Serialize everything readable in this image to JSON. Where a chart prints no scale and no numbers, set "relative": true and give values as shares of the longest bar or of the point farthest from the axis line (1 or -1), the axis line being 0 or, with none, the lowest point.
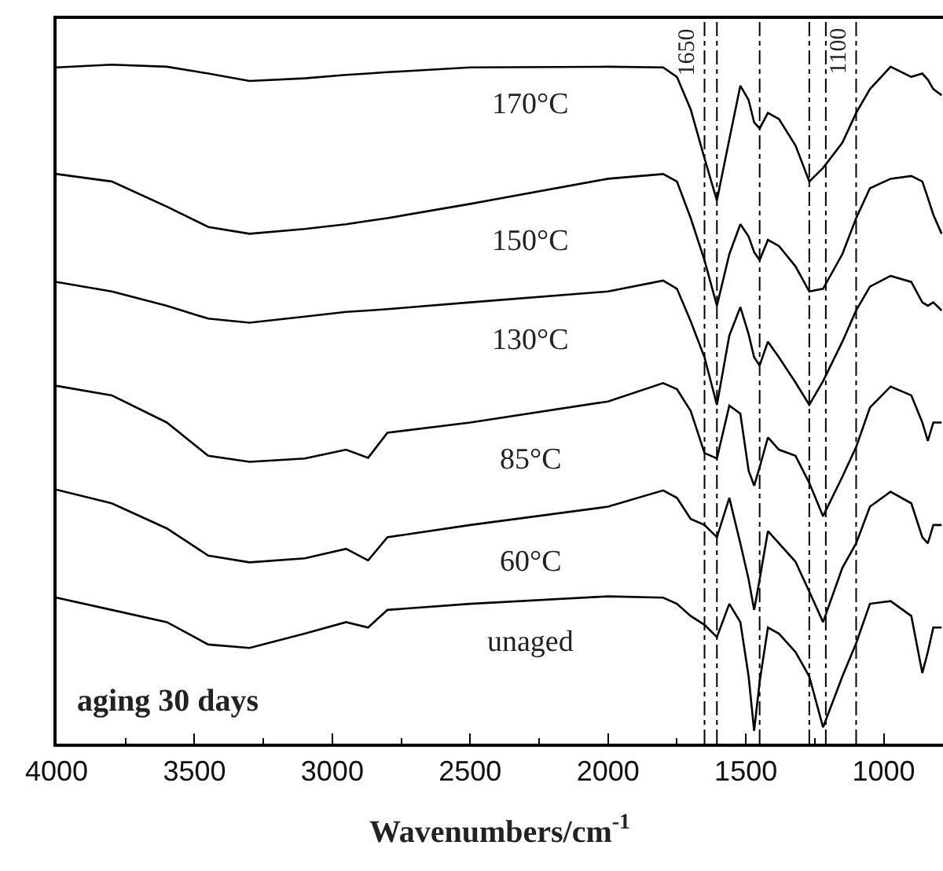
{
  "chart_data": {
    "type": "line",
    "relative": true,
    "xlabel": "Wavenumbers/cm$^{-1}$",
    "x": [
      4000,
      3800,
      3600,
      3450,
      3300,
      3100,
      2950,
      2870,
      2800,
      2500,
      2000,
      1800,
      1750,
      1700,
      1650,
      1605,
      1560,
      1520,
      1490,
      1470,
      1450,
      1420,
      1380,
      1320,
      1270,
      1220,
      1150,
      1100,
      1050,
      975,
      900,
      860,
      840,
      820,
      790
    ],
    "xlim": [
      4000,
      785
    ],
    "xticks": [
      4000,
      3500,
      3000,
      2500,
      2000,
      1500,
      1000
    ],
    "series": [
      {
        "name": "170°C",
        "color": "#000000",
        "values": [
          0.996,
          1.0,
          0.997,
          0.987,
          0.976,
          0.98,
          0.985,
          0.987,
          0.989,
          0.996,
          0.997,
          0.996,
          0.982,
          0.934,
          0.862,
          0.8,
          0.89,
          0.969,
          0.948,
          0.915,
          0.906,
          0.929,
          0.92,
          0.881,
          0.828,
          0.848,
          0.885,
          0.929,
          0.964,
          0.997,
          0.982,
          0.987,
          0.978,
          0.964,
          0.955
        ]
      },
      {
        "name": "150°C",
        "color": "#000000",
        "values": [
          0.839,
          0.828,
          0.791,
          0.761,
          0.751,
          0.758,
          0.765,
          0.77,
          0.774,
          0.795,
          0.832,
          0.839,
          0.828,
          0.774,
          0.712,
          0.645,
          0.721,
          0.765,
          0.747,
          0.724,
          0.712,
          0.742,
          0.733,
          0.703,
          0.666,
          0.67,
          0.721,
          0.774,
          0.818,
          0.832,
          0.836,
          0.828,
          0.804,
          0.779,
          0.751
        ]
      },
      {
        "name": "130°C",
        "color": "#000000",
        "values": [
          0.68,
          0.666,
          0.645,
          0.626,
          0.62,
          0.629,
          0.636,
          0.638,
          0.64,
          0.65,
          0.666,
          0.682,
          0.67,
          0.622,
          0.569,
          0.499,
          0.601,
          0.643,
          0.603,
          0.569,
          0.557,
          0.592,
          0.569,
          0.532,
          0.499,
          0.534,
          0.592,
          0.638,
          0.673,
          0.689,
          0.68,
          0.65,
          0.645,
          0.65,
          0.638
        ]
      },
      {
        "name": "85°C",
        "color": "#000000",
        "values": [
          0.527,
          0.513,
          0.473,
          0.424,
          0.415,
          0.42,
          0.433,
          0.421,
          0.458,
          0.473,
          0.504,
          0.531,
          0.522,
          0.49,
          0.428,
          0.42,
          0.498,
          0.486,
          0.402,
          0.38,
          0.407,
          0.451,
          0.433,
          0.424,
          0.384,
          0.335,
          0.393,
          0.437,
          0.495,
          0.526,
          0.513,
          0.473,
          0.446,
          0.473,
          0.473
        ]
      },
      {
        "name": "60°C",
        "color": "#000000",
        "values": [
          0.374,
          0.354,
          0.317,
          0.277,
          0.267,
          0.273,
          0.287,
          0.27,
          0.304,
          0.322,
          0.349,
          0.373,
          0.362,
          0.331,
          0.322,
          0.304,
          0.362,
          0.295,
          0.242,
          0.197,
          0.242,
          0.313,
          0.295,
          0.268,
          0.224,
          0.179,
          0.259,
          0.295,
          0.349,
          0.371,
          0.354,
          0.304,
          0.295,
          0.322,
          0.322
        ]
      },
      {
        "name": "unaged",
        "color": "#000000",
        "values": [
          0.215,
          0.197,
          0.179,
          0.146,
          0.141,
          0.162,
          0.179,
          0.171,
          0.197,
          0.206,
          0.217,
          0.215,
          0.206,
          0.188,
          0.175,
          0.157,
          0.206,
          0.179,
          0.099,
          0.019,
          0.091,
          0.171,
          0.162,
          0.135,
          0.099,
          0.024,
          0.099,
          0.148,
          0.206,
          0.21,
          0.188,
          0.104,
          0.135,
          0.171,
          0.171
        ]
      }
    ],
    "ref_lines": [
      {
        "axis": "x",
        "value": 1650,
        "label": "1650",
        "color": "#000000",
        "line_style": "dashdot"
      },
      {
        "axis": "x",
        "value": 1605,
        "label": null,
        "color": "#000000",
        "line_style": "dashdot"
      },
      {
        "axis": "x",
        "value": 1450,
        "label": null,
        "color": "#000000",
        "line_style": "dashdot"
      },
      {
        "axis": "x",
        "value": 1270,
        "label": null,
        "color": "#000000",
        "line_style": "dashdot"
      },
      {
        "axis": "x",
        "value": 1210,
        "label": null,
        "color": "#000000",
        "line_style": "dashdot"
      },
      {
        "axis": "x",
        "value": 1100,
        "label": "1100",
        "color": "#000000",
        "line_style": "dashdot"
      }
    ],
    "annotations": [
      "aging 30 days"
    ],
    "grid": false,
    "legend": false,
    "marker": "none",
    "line_style": "solid"
  }
}
